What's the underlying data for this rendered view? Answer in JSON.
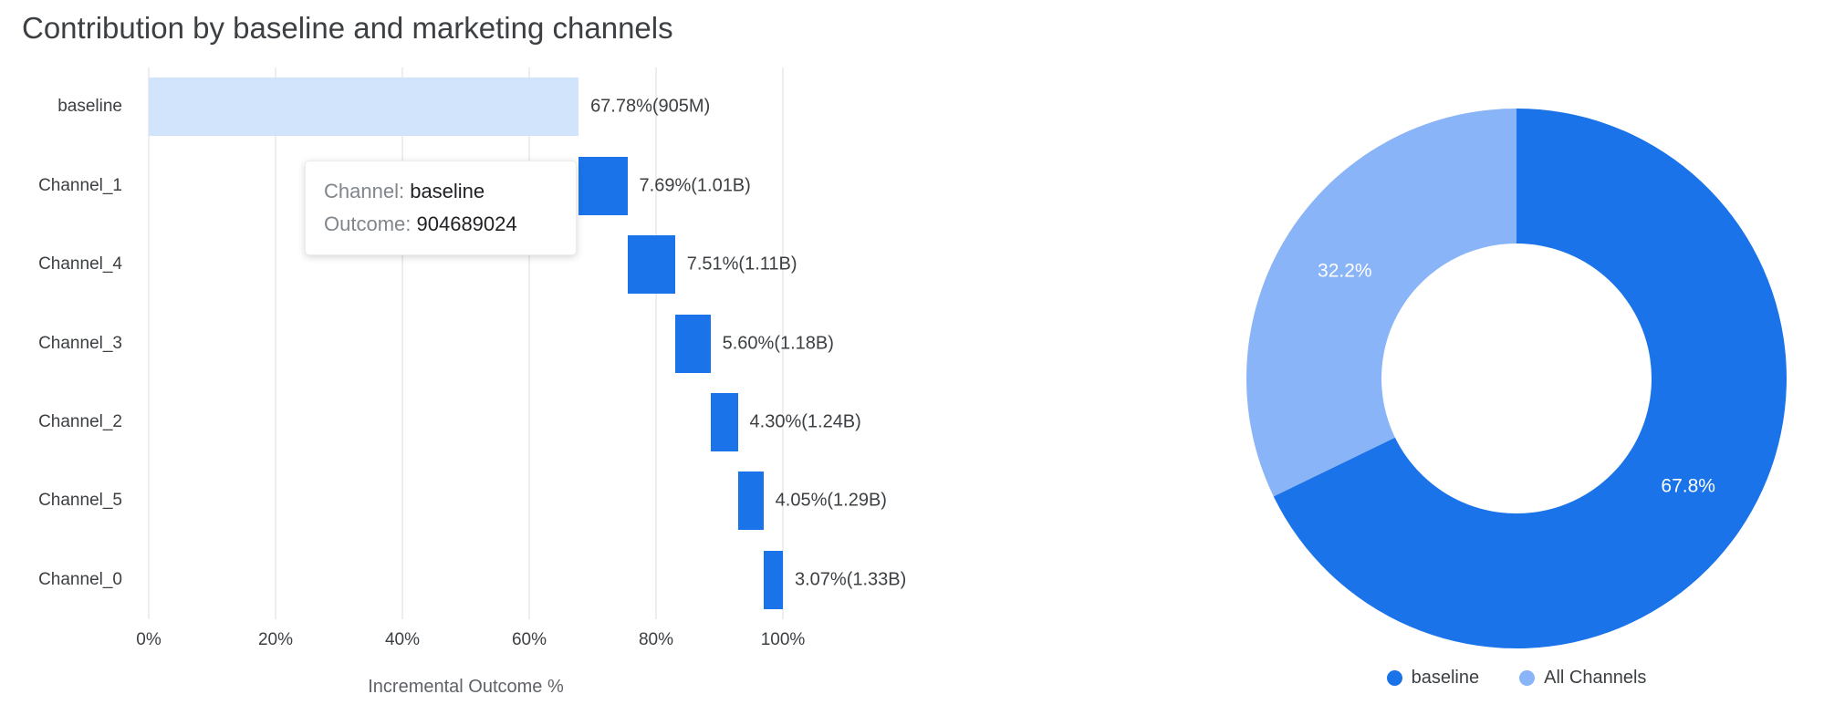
{
  "title": "Contribution by baseline and marketing channels",
  "colors": {
    "primary_blue": "#1a73e8",
    "baseline_bar_light": "#d2e3fc",
    "donut_light_blue": "#8ab4f8",
    "gridline": "#dadce0",
    "text_dark": "#3c4043",
    "text_gray": "#5f6368"
  },
  "tooltip": {
    "channel_label": "Channel:",
    "channel_value": "baseline",
    "outcome_label": "Outcome:",
    "outcome_value": "904689024"
  },
  "chart_data": [
    {
      "type": "bar",
      "variant": "horizontal-waterfall",
      "title": "Contribution by baseline and marketing channels",
      "xlabel": "Incremental Outcome %",
      "xlim": [
        0,
        100
      ],
      "grid": true,
      "x_ticks": [
        0,
        20,
        40,
        60,
        80,
        100
      ],
      "x_tick_labels": [
        "0%",
        "20%",
        "40%",
        "60%",
        "80%",
        "100%"
      ],
      "categories": [
        "baseline",
        "Channel_1",
        "Channel_4",
        "Channel_3",
        "Channel_2",
        "Channel_5",
        "Channel_0"
      ],
      "values": [
        67.78,
        7.69,
        7.51,
        5.6,
        4.3,
        4.05,
        3.07
      ],
      "bar_labels": [
        "67.78%(905M)",
        "7.69%(1.01B)",
        "7.51%(1.11B)",
        "5.60%(1.18B)",
        "4.30%(1.24B)",
        "4.05%(1.29B)",
        "3.07%(1.33B)"
      ],
      "bar_colors": [
        "#d2e3fc",
        "#1a73e8",
        "#1a73e8",
        "#1a73e8",
        "#1a73e8",
        "#1a73e8",
        "#1a73e8"
      ]
    },
    {
      "type": "pie",
      "variant": "donut",
      "legend_position": "bottom",
      "slices": [
        {
          "label": "baseline",
          "value": 67.8,
          "display": "67.8%",
          "color": "#1a73e8"
        },
        {
          "label": "All Channels",
          "value": 32.2,
          "display": "32.2%",
          "color": "#8ab4f8"
        }
      ]
    }
  ]
}
